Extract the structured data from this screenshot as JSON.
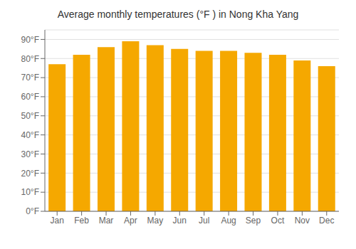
{
  "chart_data": {
    "type": "bar",
    "title": "Average monthly temperatures (°F ) in Nong Kha Yang",
    "categories": [
      "Jan",
      "Feb",
      "Mar",
      "Apr",
      "May",
      "Jun",
      "Jul",
      "Aug",
      "Sep",
      "Oct",
      "Nov",
      "Dec"
    ],
    "values": [
      77,
      82,
      86,
      89,
      87,
      85,
      84,
      84,
      83,
      82,
      79,
      76
    ],
    "color": "#F5A800",
    "ylim": [
      0,
      95
    ],
    "yticks": [
      {
        "value": 0,
        "label": "0°F"
      },
      {
        "value": 10,
        "label": "10°F"
      },
      {
        "value": 20,
        "label": "20°F"
      },
      {
        "value": 30,
        "label": "30°F"
      },
      {
        "value": 40,
        "label": "40°F"
      },
      {
        "value": 50,
        "label": "50°F"
      },
      {
        "value": 60,
        "label": "60°F"
      },
      {
        "value": 70,
        "label": "70°F"
      },
      {
        "value": 80,
        "label": "80°F"
      },
      {
        "value": 90,
        "label": "90°F"
      }
    ],
    "grid": true
  }
}
